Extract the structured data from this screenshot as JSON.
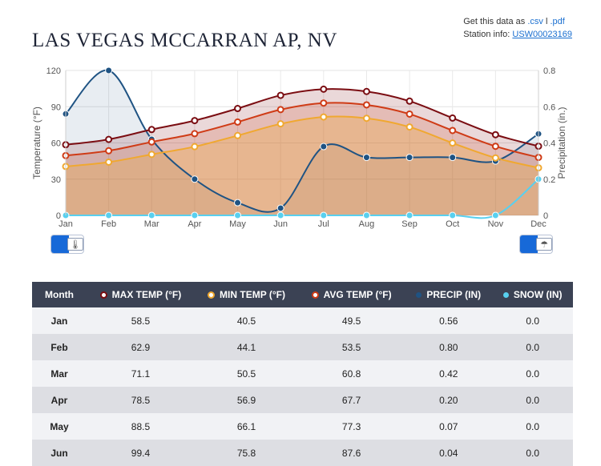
{
  "page": {
    "title": "LAS VEGAS MCCARRAN AP, NV",
    "get_data_prefix": "Get this data as",
    "csv_link": ".csv",
    "separator": "l",
    "pdf_link": ".pdf",
    "station_prefix": "Station info:",
    "station_id": "USW00023169"
  },
  "colors": {
    "max_temp": "#7b0d12",
    "min_temp": "#f0a830",
    "avg_temp": "#cf3b16",
    "precip": "#1f5383",
    "snow": "#58d0ef",
    "toggle": "#1769d8",
    "header_bg": "#3b4254"
  },
  "chart_data": {
    "type": "line",
    "categories": [
      "Jan",
      "Feb",
      "Mar",
      "Apr",
      "May",
      "Jun",
      "Jul",
      "Aug",
      "Sep",
      "Oct",
      "Nov",
      "Dec"
    ],
    "y_left": {
      "label": "Temperature (°F)",
      "range": [
        0,
        120
      ],
      "ticks": [
        0,
        30,
        60,
        90,
        120
      ]
    },
    "y_right": {
      "label": "Precipitation (in.)",
      "range": [
        0,
        0.8
      ],
      "ticks": [
        "0",
        "0.2",
        "0.4",
        "0.6",
        "0.8"
      ]
    },
    "series": [
      {
        "name": "MAX TEMP (°F)",
        "axis": "left",
        "style": "area",
        "color": "#7b0d12",
        "values": [
          58.5,
          62.9,
          71.1,
          78.5,
          88.5,
          99.4,
          104.5,
          102.6,
          94.6,
          80.6,
          66.8,
          57.3
        ]
      },
      {
        "name": "AVG TEMP (°F)",
        "axis": "left",
        "style": "area",
        "color": "#cf3b16",
        "values": [
          49.5,
          53.5,
          60.8,
          67.7,
          77.3,
          87.6,
          93.0,
          91.5,
          83.9,
          70.3,
          57.2,
          48.0
        ]
      },
      {
        "name": "MIN TEMP (°F)",
        "axis": "left",
        "style": "area",
        "color": "#f0a830",
        "values": [
          40.5,
          44.1,
          50.5,
          56.9,
          66.1,
          75.8,
          81.5,
          80.4,
          73.2,
          59.9,
          47.6,
          39.4
        ]
      },
      {
        "name": "PRECIP (IN)",
        "axis": "right",
        "style": "area",
        "color": "#1f5383",
        "values": [
          0.56,
          0.8,
          0.42,
          0.2,
          0.07,
          0.04,
          0.38,
          0.32,
          0.32,
          0.32,
          0.3,
          0.45
        ]
      },
      {
        "name": "SNOW (IN)",
        "axis": "right",
        "style": "line",
        "color": "#58d0ef",
        "values": [
          0.0,
          0.0,
          0.0,
          0.0,
          0.0,
          0.0,
          0.0,
          0.0,
          0.0,
          0.0,
          0.0,
          0.2
        ]
      }
    ],
    "grid": true
  },
  "table": {
    "headers": [
      "Month",
      "MAX TEMP (°F)",
      "MIN TEMP (°F)",
      "AVG TEMP (°F)",
      "PRECIP (IN)",
      "SNOW (IN)"
    ],
    "rows": [
      [
        "Jan",
        "58.5",
        "40.5",
        "49.5",
        "0.56",
        "0.0"
      ],
      [
        "Feb",
        "62.9",
        "44.1",
        "53.5",
        "0.80",
        "0.0"
      ],
      [
        "Mar",
        "71.1",
        "50.5",
        "60.8",
        "0.42",
        "0.0"
      ],
      [
        "Apr",
        "78.5",
        "56.9",
        "67.7",
        "0.20",
        "0.0"
      ],
      [
        "May",
        "88.5",
        "66.1",
        "77.3",
        "0.07",
        "0.0"
      ],
      [
        "Jun",
        "99.4",
        "75.8",
        "87.6",
        "0.04",
        "0.0"
      ]
    ]
  }
}
